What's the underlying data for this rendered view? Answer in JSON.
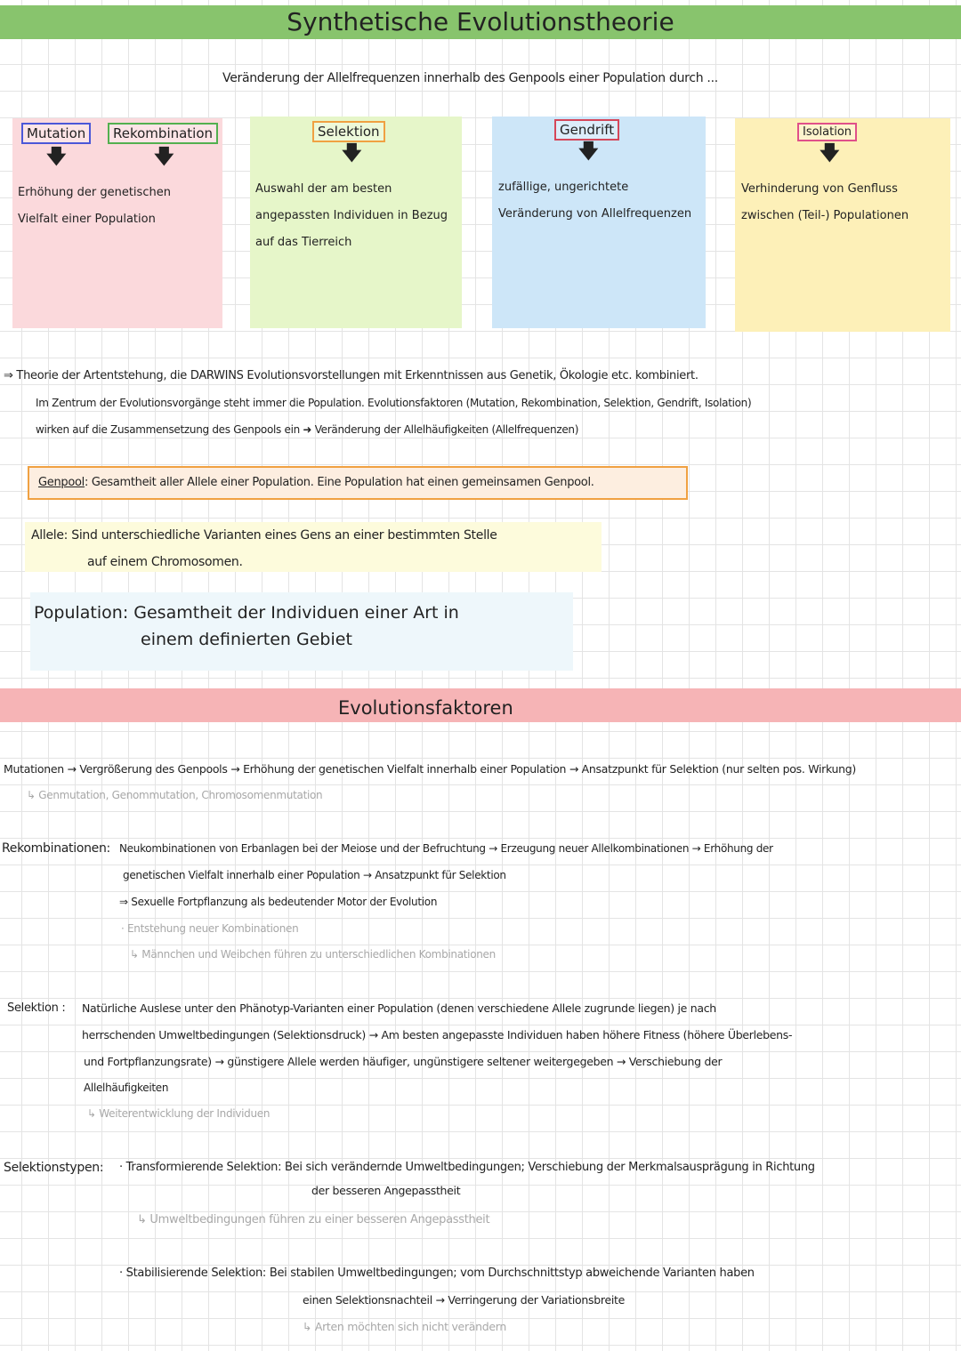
{
  "title": "Synthetische Evolutionstheorie",
  "subtitle": "Veränderung der Allelfrequenzen innerhalb des Genpools einer Population durch ...",
  "colors": {
    "title_band": "#88c46d",
    "section_band": "#f6b4b6",
    "mutation": "#4b57d8",
    "rekombination": "#53b04f",
    "selektion": "#f0a142",
    "gendrift": "#d5475a",
    "isolation": "#e0508a"
  },
  "factors": [
    {
      "label": "Mutation",
      "label2": "Rekombination",
      "text": "Erhöhung der genetischen Vielfalt einer Population"
    },
    {
      "label": "Selektion",
      "text": "Auswahl der am besten angepassten Individuen in Bezug auf das Tierreich"
    },
    {
      "label": "Gendrift",
      "text": "zufällige, ungerichtete Veränderung von Allelfrequenzen"
    },
    {
      "label": "Isolation",
      "text": "Verhinderung von Genfluss zwischen (Teil-) Populationen"
    }
  ],
  "theory": {
    "line1": "⇒ Theorie der Artentstehung, die DARWINS Evolutionsvorstellungen mit Erkenntnissen aus Genetik, Ökologie etc. kombiniert.",
    "line2": "Im Zentrum der Evolutionsvorgänge steht immer die Population. Evolutionsfaktoren (Mutation, Rekombination, Selektion, Gendrift, Isolation)",
    "line3": "wirken auf die Zusammensetzung des Genpools ein ➜ Veränderung der Allelhäufigkeiten (Allelfrequenzen)"
  },
  "genpool": {
    "term": "Genpool",
    "text": ": Gesamtheit aller Allele einer Population. Eine Population hat einen gemeinsamen Genpool."
  },
  "allele": {
    "line1": "Allele: Sind unterschiedliche Varianten eines Gens an einer bestimmten Stelle",
    "line2": "auf einem Chromosomen."
  },
  "population": {
    "line1": "Population: Gesamtheit der Individuen einer Art in",
    "line2": "einem definierten Gebiet"
  },
  "section_title": "Evolutionsfaktoren",
  "mutationen": {
    "line1": "Mutationen → Vergrößerung des Genpools → Erhöhung der genetischen Vielfalt innerhalb einer Population → Ansatzpunkt für Selektion (nur selten pos. Wirkung)",
    "note": "↳ Genmutation, Genommutation, Chromosomenmutation"
  },
  "rekombinationen": {
    "label": "Rekombinationen:",
    "line1": "Neukombinationen von Erbanlagen bei der Meiose und der Befruchtung → Erzeugung neuer Allelkombinationen → Erhöhung der",
    "line2": "genetischen Vielfalt innerhalb einer Population → Ansatzpunkt für Selektion",
    "line3": "⇒ Sexuelle Fortpflanzung als bedeutender Motor der Evolution",
    "note1": "· Entstehung neuer Kombinationen",
    "note2": "↳ Männchen und Weibchen führen zu unterschiedlichen Kombinationen"
  },
  "selektion": {
    "label": "Selektion :",
    "line1": "Natürliche Auslese unter den Phänotyp-Varianten einer Population (denen verschiedene Allele zugrunde liegen) je nach",
    "line2": "herrschenden Umweltbedingungen (Selektionsdruck) → Am besten angepasste Individuen haben höhere Fitness (höhere Überlebens-",
    "line3": "und Fortpflanzungsrate) → günstigere Allele werden häufiger, ungünstigere seltener weitergegeben → Verschiebung der",
    "line4": "Allelhäufigkeiten",
    "note": "↳ Weiterentwicklung der Individuen"
  },
  "selektionstypen": {
    "label": "Selektionstypen:",
    "t1": "· Transformierende Selektion: Bei sich verändernde Umweltbedingungen; Verschiebung der Merkmalsausprägung in Richtung",
    "t1b": "der besseren Angepasstheit",
    "t1note": "↳ Umweltbedingungen führen zu einer besseren Angepasstheit",
    "t2": "· Stabilisierende Selektion: Bei stabilen Umweltbedingungen; vom Durchschnittstyp abweichende Varianten haben",
    "t2b": "einen Selektionsnachteil → Verringerung der Variationsbreite",
    "t2note": "↳ Arten möchten sich nicht verändern"
  }
}
